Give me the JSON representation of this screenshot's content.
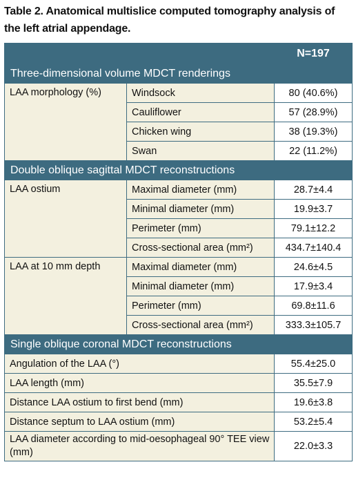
{
  "caption": "Table 2. Anatomical multislice computed tomography analysis of the left atrial appendage.",
  "header": {
    "n_label": "N=197"
  },
  "sections": {
    "s1": {
      "title": "Three-dimensional volume MDCT renderings",
      "category": "LAA morphology (%)",
      "rows": [
        {
          "label": "Windsock",
          "value": "80 (40.6%)"
        },
        {
          "label": "Cauliflower",
          "value": "57 (28.9%)"
        },
        {
          "label": "Chicken wing",
          "value": "38 (19.3%)"
        },
        {
          "label": "Swan",
          "value": "22 (11.2%)"
        }
      ]
    },
    "s2": {
      "title": "Double oblique sagittal MDCT reconstructions",
      "groups": [
        {
          "category": "LAA ostium",
          "rows": [
            {
              "label": "Maximal diameter (mm)",
              "value": "28.7±4.4"
            },
            {
              "label": "Minimal diameter (mm)",
              "value": "19.9±3.7"
            },
            {
              "label": "Perimeter (mm)",
              "value": "79.1±12.2"
            },
            {
              "label": "Cross-sectional area (mm²)",
              "value": "434.7±140.4"
            }
          ]
        },
        {
          "category": "LAA at 10 mm depth",
          "rows": [
            {
              "label": "Maximal diameter (mm)",
              "value": "24.6±4.5"
            },
            {
              "label": "Minimal diameter (mm)",
              "value": "17.9±3.4"
            },
            {
              "label": "Perimeter (mm)",
              "value": "69.8±11.6"
            },
            {
              "label": "Cross-sectional area (mm²)",
              "value": "333.3±105.7"
            }
          ]
        }
      ]
    },
    "s3": {
      "title": "Single oblique coronal MDCT reconstructions",
      "rows": [
        {
          "label": "Angulation of the LAA (°)",
          "value": "55.4±25.0"
        },
        {
          "label": "LAA length (mm)",
          "value": "35.5±7.9"
        },
        {
          "label": "Distance LAA ostium to first bend (mm)",
          "value": "19.6±3.8"
        },
        {
          "label": "Distance septum to LAA ostium (mm)",
          "value": "53.2±5.4"
        },
        {
          "label": "LAA diameter according to mid-oesophageal 90° TEE view (mm)",
          "value": "22.0±3.3"
        }
      ]
    }
  },
  "colors": {
    "header_bg": "#3d6b80",
    "label_bg": "#f3f0df",
    "border": "#3d6b80"
  }
}
